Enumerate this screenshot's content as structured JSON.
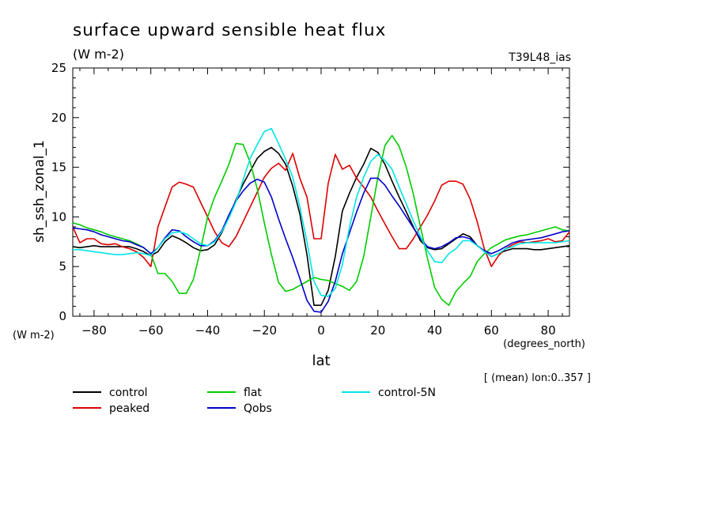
{
  "chart_data": {
    "type": "line",
    "title": "surface upward sensible heat flux",
    "units_label": "(W m-2)",
    "experiment_label": "T39L48_ias",
    "ylabel": "sh_ssh_zonal_1",
    "y_units": "(W m-2)",
    "xlabel": "lat",
    "x_units": "(degrees_north)",
    "mean_note": "[ (mean) lon:0..357 ]",
    "xlim": [
      -87.5,
      87.5
    ],
    "ylim": [
      0,
      25
    ],
    "x_ticks": [
      -80,
      -60,
      -40,
      -20,
      0,
      20,
      40,
      60,
      80
    ],
    "y_ticks": [
      0,
      5,
      10,
      15,
      20,
      25
    ],
    "grid": false,
    "legend_position": "bottom",
    "x": [
      -87.5,
      -85,
      -82.5,
      -80,
      -77.5,
      -75,
      -72.5,
      -70,
      -67.5,
      -65,
      -62.5,
      -60,
      -57.5,
      -55,
      -52.5,
      -50,
      -47.5,
      -45,
      -42.5,
      -40,
      -37.5,
      -35,
      -32.5,
      -30,
      -27.5,
      -25,
      -22.5,
      -20,
      -17.5,
      -15,
      -12.5,
      -10,
      -7.5,
      -5,
      -2.5,
      0,
      2.5,
      5,
      7.5,
      10,
      12.5,
      15,
      17.5,
      20,
      22.5,
      25,
      27.5,
      30,
      32.5,
      35,
      37.5,
      40,
      42.5,
      45,
      47.5,
      50,
      52.5,
      55,
      57.5,
      60,
      62.5,
      65,
      67.5,
      70,
      72.5,
      75,
      77.5,
      80,
      82.5,
      85,
      87.5
    ],
    "series": [
      {
        "name": "control",
        "color": "#000000",
        "values": [
          7.0,
          6.9,
          7.0,
          7.1,
          7.0,
          7.0,
          7.0,
          7.0,
          7.0,
          6.8,
          6.5,
          6.1,
          6.5,
          7.5,
          8.1,
          7.8,
          7.4,
          6.9,
          6.6,
          6.7,
          7.2,
          8.4,
          10.0,
          11.7,
          13.3,
          14.6,
          15.9,
          16.6,
          17.0,
          16.4,
          15.3,
          13.1,
          10.3,
          6.2,
          1.1,
          1.1,
          2.6,
          6.0,
          10.6,
          12.4,
          14.0,
          15.3,
          16.9,
          16.5,
          15.3,
          13.6,
          12.0,
          10.5,
          9.0,
          7.6,
          6.9,
          6.7,
          6.8,
          7.3,
          7.8,
          8.3,
          8.0,
          7.1,
          6.6,
          6.0,
          6.3,
          6.6,
          6.8,
          6.8,
          6.8,
          6.7,
          6.7,
          6.8,
          6.9,
          7.0,
          7.1
        ]
      },
      {
        "name": "peaked",
        "color": "#dd0000",
        "values": [
          9.0,
          7.4,
          7.8,
          7.8,
          7.3,
          7.2,
          7.3,
          7.0,
          6.8,
          6.5,
          5.9,
          5.0,
          9.0,
          11.0,
          13.0,
          13.5,
          13.3,
          13.0,
          11.5,
          10.0,
          8.5,
          7.4,
          7.0,
          8.0,
          9.5,
          11.0,
          12.5,
          14.0,
          14.9,
          15.4,
          14.7,
          16.4,
          13.9,
          12.0,
          7.8,
          7.8,
          13.4,
          16.3,
          14.8,
          15.2,
          13.9,
          13.0,
          12.0,
          10.6,
          9.3,
          8.0,
          6.8,
          6.8,
          7.8,
          9.0,
          10.2,
          11.6,
          13.2,
          13.6,
          13.6,
          13.3,
          11.8,
          9.5,
          6.8,
          5.0,
          6.1,
          6.8,
          7.2,
          7.5,
          7.4,
          7.5,
          7.6,
          7.8,
          7.5,
          7.6,
          8.5
        ]
      },
      {
        "name": "flat",
        "color": "#00cc00",
        "values": [
          9.4,
          9.2,
          8.9,
          8.7,
          8.5,
          8.2,
          8.0,
          7.8,
          7.6,
          7.3,
          6.9,
          6.3,
          4.3,
          4.3,
          3.5,
          2.3,
          2.3,
          3.7,
          6.7,
          10.0,
          12.0,
          13.6,
          15.3,
          17.4,
          17.3,
          15.5,
          12.8,
          9.4,
          6.2,
          3.4,
          2.5,
          2.7,
          3.1,
          3.5,
          3.9,
          3.7,
          3.6,
          3.3,
          3.0,
          2.6,
          3.5,
          6.0,
          10.0,
          14.0,
          17.2,
          18.2,
          17.1,
          15.0,
          12.3,
          9.0,
          5.8,
          2.9,
          1.7,
          1.1,
          2.5,
          3.3,
          4.0,
          5.5,
          6.3,
          6.9,
          7.3,
          7.7,
          7.9,
          8.1,
          8.2,
          8.4,
          8.6,
          8.8,
          9.0,
          8.7,
          8.6
        ]
      },
      {
        "name": "Qobs",
        "color": "#0000cc",
        "values": [
          8.9,
          8.8,
          8.7,
          8.5,
          8.2,
          8.0,
          7.8,
          7.6,
          7.5,
          7.2,
          6.9,
          6.3,
          6.9,
          7.9,
          8.7,
          8.6,
          8.0,
          7.5,
          7.1,
          7.1,
          7.6,
          8.6,
          10.2,
          11.6,
          12.6,
          13.4,
          13.8,
          13.5,
          12.0,
          9.8,
          7.8,
          5.9,
          3.8,
          1.6,
          0.5,
          0.4,
          1.5,
          3.5,
          6.3,
          8.4,
          10.5,
          12.4,
          13.9,
          13.9,
          13.2,
          12.1,
          11.1,
          10.0,
          8.9,
          7.8,
          7.0,
          6.8,
          7.0,
          7.4,
          7.9,
          8.0,
          7.8,
          7.1,
          6.6,
          6.3,
          6.6,
          7.0,
          7.4,
          7.6,
          7.7,
          7.8,
          7.9,
          8.1,
          8.3,
          8.5,
          8.6
        ]
      },
      {
        "name": "control-5N",
        "color": "#00e5e5",
        "values": [
          6.7,
          6.7,
          6.6,
          6.5,
          6.4,
          6.3,
          6.2,
          6.2,
          6.3,
          6.4,
          6.3,
          6.1,
          6.9,
          7.8,
          8.4,
          8.5,
          8.3,
          7.8,
          7.3,
          7.1,
          7.5,
          8.5,
          9.9,
          11.5,
          13.7,
          15.9,
          17.3,
          18.6,
          18.9,
          17.4,
          15.8,
          14.0,
          11.0,
          7.5,
          3.5,
          2.1,
          2.0,
          2.8,
          5.2,
          9.0,
          12.0,
          14.0,
          15.6,
          16.3,
          15.7,
          14.8,
          13.0,
          11.3,
          9.6,
          8.0,
          6.6,
          5.5,
          5.4,
          6.3,
          6.8,
          7.6,
          7.6,
          7.1,
          6.5,
          6.0,
          6.3,
          6.8,
          7.0,
          7.3,
          7.4,
          7.4,
          7.4,
          7.4,
          7.4,
          7.5,
          7.6
        ]
      }
    ]
  }
}
